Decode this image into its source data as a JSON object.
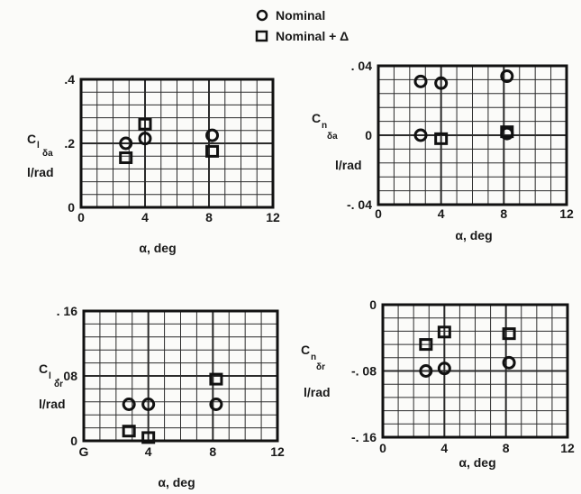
{
  "legend": {
    "items": [
      {
        "label": "Nominal",
        "marker": "circle-icon"
      },
      {
        "label": "Nominal + Δ",
        "marker": "square-icon"
      }
    ]
  },
  "colors": {
    "frame": "#111111",
    "grid": "#2b2b2b",
    "background": "#fbfbf9"
  },
  "chart_data": [
    {
      "type": "scatter",
      "ylabel": {
        "main": "C",
        "sub1": "l",
        "sub2": "δa",
        "unit": "l/rad"
      },
      "xlabel": "α, deg",
      "xlim": [
        0,
        12
      ],
      "ylim": [
        0,
        0.4
      ],
      "xticks": [
        "0",
        "4",
        "8",
        "12"
      ],
      "yticks": [
        "0",
        ".2",
        ".4"
      ],
      "grid": true,
      "series": [
        {
          "name": "Nominal",
          "marker": "circle",
          "points": [
            [
              2.8,
              0.2
            ],
            [
              4.0,
              0.215
            ],
            [
              8.2,
              0.225
            ]
          ]
        },
        {
          "name": "Nominal + Δ",
          "marker": "square",
          "points": [
            [
              2.8,
              0.155
            ],
            [
              4.0,
              0.26
            ],
            [
              8.2,
              0.175
            ]
          ]
        }
      ]
    },
    {
      "type": "scatter",
      "ylabel": {
        "main": "C",
        "sub1": "n",
        "sub2": "δa",
        "unit": "l/rad"
      },
      "xlabel": "α, deg",
      "xlim": [
        0,
        12
      ],
      "ylim": [
        -0.04,
        0.04
      ],
      "xticks": [
        "0",
        "4",
        "8",
        "12"
      ],
      "yticks": [
        "-. 04",
        "0",
        ". 04"
      ],
      "grid": true,
      "series": [
        {
          "name": "Nominal",
          "marker": "circle",
          "points": [
            [
              2.7,
              0.031
            ],
            [
              4.0,
              0.03
            ],
            [
              8.2,
              0.034
            ],
            [
              2.7,
              0.0
            ],
            [
              8.2,
              0.001
            ]
          ]
        },
        {
          "name": "Nominal + Δ",
          "marker": "square",
          "points": [
            [
              4.0,
              -0.002
            ],
            [
              8.2,
              0.002
            ]
          ]
        }
      ]
    },
    {
      "type": "scatter",
      "ylabel": {
        "main": "C",
        "sub1": "l",
        "sub2": "δr",
        "unit": "l/rad"
      },
      "xlabel": "α, deg",
      "xlim": [
        0,
        12
      ],
      "ylim": [
        0,
        0.16
      ],
      "xticks": [
        "G",
        "4",
        "8",
        "12"
      ],
      "yticks": [
        "0",
        ". 08",
        ". 16"
      ],
      "grid": true,
      "series": [
        {
          "name": "Nominal",
          "marker": "circle",
          "points": [
            [
              2.8,
              0.045
            ],
            [
              4.0,
              0.045
            ],
            [
              8.2,
              0.045
            ]
          ]
        },
        {
          "name": "Nominal + Δ",
          "marker": "square",
          "points": [
            [
              2.8,
              0.012
            ],
            [
              4.0,
              0.004
            ],
            [
              8.2,
              0.076
            ]
          ]
        }
      ]
    },
    {
      "type": "scatter",
      "ylabel": {
        "main": "C",
        "sub1": "n",
        "sub2": "δr",
        "unit": "l/rad"
      },
      "xlabel": "α, deg",
      "xlim": [
        0,
        12
      ],
      "ylim": [
        -0.16,
        0
      ],
      "xticks": [
        "0",
        "4",
        "8",
        "12"
      ],
      "yticks": [
        "-. 16",
        "-. 08",
        "0"
      ],
      "grid": true,
      "series": [
        {
          "name": "Nominal",
          "marker": "circle",
          "points": [
            [
              2.8,
              -0.08
            ],
            [
              4.0,
              -0.077
            ],
            [
              8.2,
              -0.07
            ]
          ]
        },
        {
          "name": "Nominal + Δ",
          "marker": "square",
          "points": [
            [
              2.8,
              -0.048
            ],
            [
              4.0,
              -0.033
            ],
            [
              8.2,
              -0.035
            ]
          ]
        }
      ]
    }
  ]
}
